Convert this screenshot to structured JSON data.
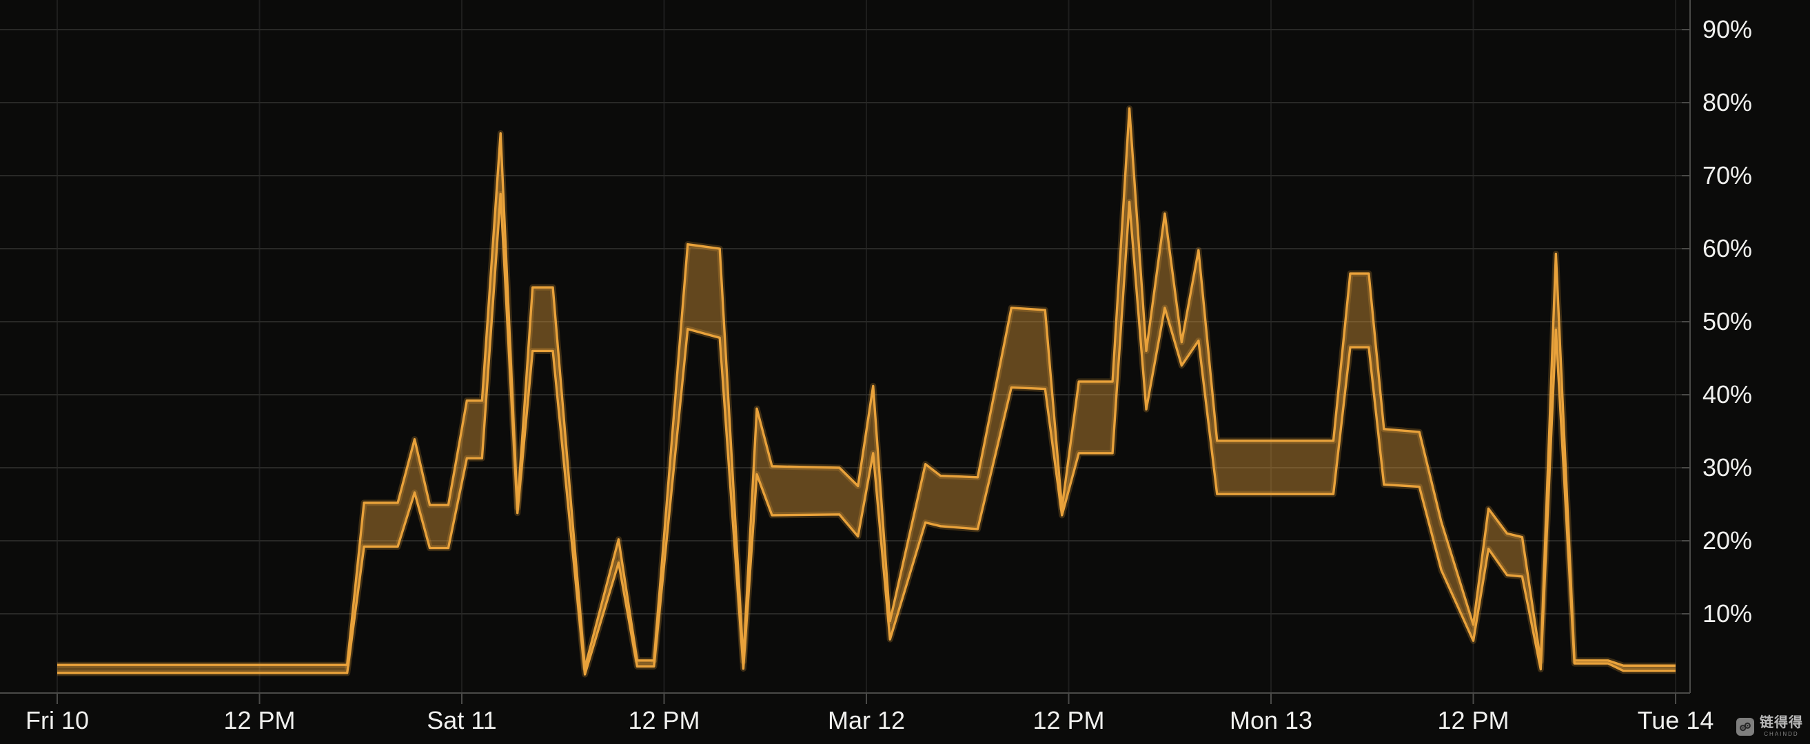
{
  "watermark": {
    "logo_icon": "chain-link-icon",
    "text": "链得得",
    "subtext": "CHAINDD"
  },
  "chart_data": {
    "type": "area",
    "subtype": "arearange-band-with-bright-edge-lines",
    "title": "",
    "legend": "none",
    "x_axis": {
      "unit": "time",
      "range_hours": [
        0,
        96
      ],
      "grid": true,
      "tick_labels": [
        {
          "t": 0,
          "label": "Fri 10"
        },
        {
          "t": 12,
          "label": "12 PM"
        },
        {
          "t": 24,
          "label": "Sat 11"
        },
        {
          "t": 36,
          "label": "12 PM"
        },
        {
          "t": 48,
          "label": "Mar 12"
        },
        {
          "t": 60,
          "label": "12 PM"
        },
        {
          "t": 72,
          "label": "Mon 13"
        },
        {
          "t": 84,
          "label": "12 PM"
        },
        {
          "t": 96,
          "label": "Tue 14"
        }
      ]
    },
    "y_axis": {
      "unit": "%",
      "position": "right",
      "range": [
        0,
        95
      ],
      "grid": true,
      "tick_values": [
        10,
        20,
        30,
        40,
        50,
        60,
        70,
        80,
        90
      ],
      "tick_suffix": "%"
    },
    "series": [
      {
        "name": "upper-bound",
        "points": [
          [
            0,
            3.0
          ],
          [
            17.2,
            3.0
          ],
          [
            18.2,
            25.2
          ],
          [
            20.2,
            25.2
          ],
          [
            21.2,
            33.9
          ],
          [
            22.1,
            24.9
          ],
          [
            23.2,
            24.9
          ],
          [
            24.3,
            39.2
          ],
          [
            25.2,
            39.2
          ],
          [
            26.3,
            75.8
          ],
          [
            27.3,
            24.5
          ],
          [
            28.2,
            54.7
          ],
          [
            29.4,
            54.7
          ],
          [
            31.3,
            2.6
          ],
          [
            33.3,
            20.2
          ],
          [
            34.4,
            3.6
          ],
          [
            35.4,
            3.6
          ],
          [
            37.4,
            60.6
          ],
          [
            39.3,
            60.0
          ],
          [
            40.7,
            3.5
          ],
          [
            41.5,
            38.1
          ],
          [
            42.4,
            30.2
          ],
          [
            46.4,
            30.0
          ],
          [
            47.5,
            27.5
          ],
          [
            48.4,
            41.2
          ],
          [
            49.4,
            9.0
          ],
          [
            51.5,
            30.5
          ],
          [
            52.4,
            28.9
          ],
          [
            54.6,
            28.7
          ],
          [
            56.6,
            51.9
          ],
          [
            58.6,
            51.6
          ],
          [
            59.6,
            24.5
          ],
          [
            60.6,
            41.8
          ],
          [
            62.6,
            41.8
          ],
          [
            63.6,
            79.2
          ],
          [
            64.6,
            46.0
          ],
          [
            65.7,
            64.8
          ],
          [
            66.7,
            47.2
          ],
          [
            67.7,
            59.8
          ],
          [
            68.8,
            33.7
          ],
          [
            75.7,
            33.7
          ],
          [
            76.7,
            56.6
          ],
          [
            77.8,
            56.6
          ],
          [
            78.7,
            35.3
          ],
          [
            80.8,
            34.9
          ],
          [
            82.1,
            22.6
          ],
          [
            84.0,
            8.5
          ],
          [
            84.9,
            24.4
          ],
          [
            86.0,
            21.0
          ],
          [
            86.9,
            20.5
          ],
          [
            88.0,
            3.5
          ],
          [
            88.9,
            59.3
          ],
          [
            90.0,
            3.6
          ],
          [
            92.0,
            3.6
          ],
          [
            92.9,
            2.9
          ],
          [
            96.0,
            2.9
          ]
        ]
      },
      {
        "name": "lower-bound",
        "points": [
          [
            0,
            1.9
          ],
          [
            17.2,
            1.9
          ],
          [
            18.2,
            19.2
          ],
          [
            20.2,
            19.2
          ],
          [
            21.2,
            26.6
          ],
          [
            22.1,
            19.0
          ],
          [
            23.2,
            19.0
          ],
          [
            24.3,
            31.3
          ],
          [
            25.2,
            31.3
          ],
          [
            26.3,
            67.5
          ],
          [
            27.3,
            23.8
          ],
          [
            28.2,
            46.0
          ],
          [
            29.4,
            46.0
          ],
          [
            31.3,
            1.7
          ],
          [
            33.3,
            17.0
          ],
          [
            34.4,
            2.8
          ],
          [
            35.4,
            2.8
          ],
          [
            37.4,
            49.0
          ],
          [
            39.3,
            47.8
          ],
          [
            40.7,
            2.5
          ],
          [
            41.5,
            29.1
          ],
          [
            42.4,
            23.5
          ],
          [
            46.4,
            23.6
          ],
          [
            47.5,
            20.6
          ],
          [
            48.4,
            32.0
          ],
          [
            49.4,
            6.5
          ],
          [
            51.5,
            22.5
          ],
          [
            52.4,
            22.0
          ],
          [
            54.6,
            21.6
          ],
          [
            56.6,
            41.0
          ],
          [
            58.6,
            40.8
          ],
          [
            59.6,
            23.5
          ],
          [
            60.6,
            32.0
          ],
          [
            62.6,
            32.0
          ],
          [
            63.6,
            66.4
          ],
          [
            64.6,
            38.0
          ],
          [
            65.7,
            51.9
          ],
          [
            66.7,
            44.0
          ],
          [
            67.7,
            47.4
          ],
          [
            68.8,
            26.4
          ],
          [
            75.7,
            26.4
          ],
          [
            76.7,
            46.5
          ],
          [
            77.8,
            46.5
          ],
          [
            78.7,
            27.7
          ],
          [
            80.8,
            27.4
          ],
          [
            82.1,
            16.0
          ],
          [
            84.0,
            6.3
          ],
          [
            84.9,
            18.9
          ],
          [
            86.0,
            15.3
          ],
          [
            86.9,
            15.1
          ],
          [
            88.0,
            2.4
          ],
          [
            88.9,
            48.9
          ],
          [
            90.0,
            3.2
          ],
          [
            92.0,
            3.2
          ],
          [
            92.9,
            2.2
          ],
          [
            96.0,
            2.2
          ]
        ]
      }
    ],
    "colors": {
      "line": "#e9a23b",
      "line_glow": "rgba(233,162,59,0.22)",
      "band_fill": "rgba(233,162,59,0.40)",
      "grid_horizontal": "#292927",
      "grid_vertical": "#1e1e1d",
      "axis": "#4a4a48",
      "label": "#f0f0ee",
      "background": "#0b0b0a"
    }
  }
}
